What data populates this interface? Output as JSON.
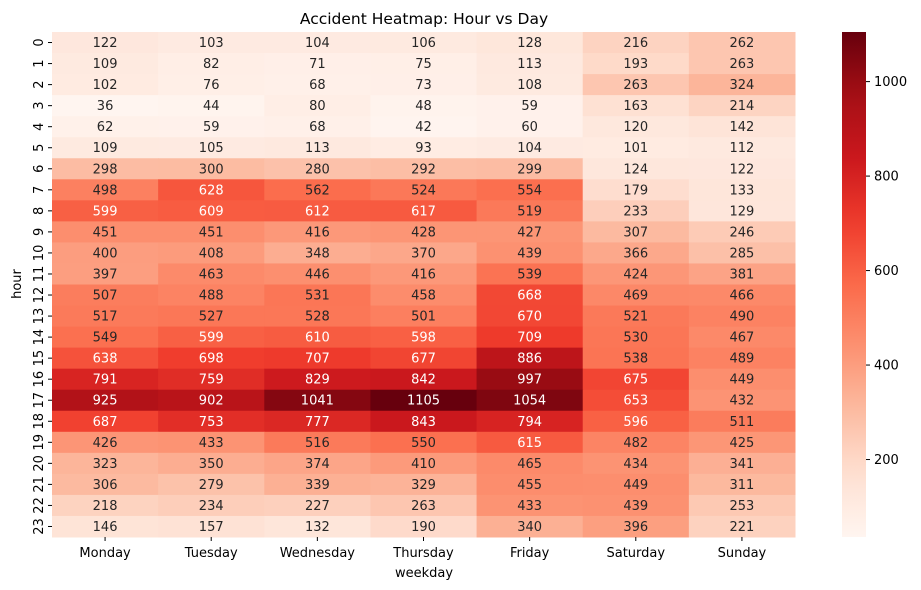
{
  "chart_data": {
    "type": "heatmap",
    "title": "Accident Heatmap: Hour vs Day",
    "xlabel": "weekday",
    "ylabel": "hour",
    "x_categories": [
      "Monday",
      "Tuesday",
      "Wednesday",
      "Thursday",
      "Friday",
      "Saturday",
      "Sunday"
    ],
    "y_categories": [
      "0",
      "1",
      "2",
      "3",
      "4",
      "5",
      "6",
      "7",
      "8",
      "9",
      "10",
      "11",
      "12",
      "13",
      "14",
      "15",
      "16",
      "17",
      "18",
      "19",
      "20",
      "21",
      "22",
      "23"
    ],
    "values": [
      [
        122,
        103,
        104,
        106,
        128,
        216,
        262
      ],
      [
        109,
        82,
        71,
        75,
        113,
        193,
        263
      ],
      [
        102,
        76,
        68,
        73,
        108,
        263,
        324
      ],
      [
        36,
        44,
        80,
        48,
        59,
        163,
        214
      ],
      [
        62,
        59,
        68,
        42,
        60,
        120,
        142
      ],
      [
        109,
        105,
        113,
        93,
        104,
        101,
        112
      ],
      [
        298,
        300,
        280,
        292,
        299,
        124,
        122
      ],
      [
        498,
        628,
        562,
        524,
        554,
        179,
        133
      ],
      [
        599,
        609,
        612,
        617,
        519,
        233,
        129
      ],
      [
        451,
        451,
        416,
        428,
        427,
        307,
        246
      ],
      [
        400,
        408,
        348,
        370,
        439,
        366,
        285
      ],
      [
        397,
        463,
        446,
        416,
        539,
        424,
        381
      ],
      [
        507,
        488,
        531,
        458,
        668,
        469,
        466
      ],
      [
        517,
        527,
        528,
        501,
        670,
        521,
        490
      ],
      [
        549,
        599,
        610,
        598,
        709,
        530,
        467
      ],
      [
        638,
        698,
        707,
        677,
        886,
        538,
        489
      ],
      [
        791,
        759,
        829,
        842,
        997,
        675,
        449
      ],
      [
        925,
        902,
        1041,
        1105,
        1054,
        653,
        432
      ],
      [
        687,
        753,
        777,
        843,
        794,
        596,
        511
      ],
      [
        426,
        433,
        516,
        550,
        615,
        482,
        425
      ],
      [
        323,
        350,
        374,
        410,
        465,
        434,
        341
      ],
      [
        306,
        279,
        339,
        329,
        455,
        449,
        311
      ],
      [
        218,
        234,
        227,
        263,
        433,
        439,
        253
      ],
      [
        146,
        157,
        132,
        190,
        340,
        396,
        221
      ]
    ],
    "colormap": "Reds",
    "colorbar_ticks": [
      "200",
      "400",
      "600",
      "800",
      "1000"
    ],
    "value_range": [
      36,
      1105
    ]
  }
}
